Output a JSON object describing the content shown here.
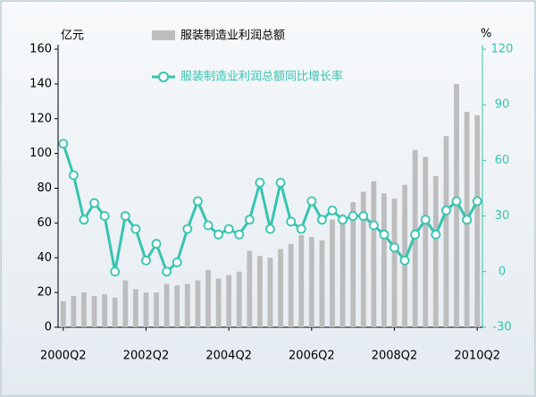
{
  "chart_data": {
    "type": "bar-line",
    "y_unit": "亿元",
    "y2_unit": "%",
    "categories": [
      "2000Q2",
      null,
      null,
      null,
      null,
      null,
      null,
      null,
      "2002Q2",
      null,
      null,
      null,
      null,
      null,
      null,
      null,
      "2004Q2",
      null,
      null,
      null,
      null,
      null,
      null,
      null,
      "2006Q2",
      null,
      null,
      null,
      null,
      null,
      null,
      null,
      "2008Q2",
      null,
      null,
      null,
      null,
      null,
      null,
      null,
      "2010Q2"
    ],
    "series": [
      {
        "name": "服装制造业利润总额",
        "type": "bar",
        "color": "#bdbdbd",
        "axis": "y",
        "values": [
          15,
          18,
          20,
          18,
          19,
          17,
          27,
          22,
          20,
          20,
          25,
          24,
          25,
          27,
          33,
          28,
          30,
          32,
          44,
          41,
          40,
          45,
          48,
          53,
          52,
          50,
          62,
          65,
          72,
          78,
          84,
          77,
          74,
          82,
          102,
          98,
          87,
          110,
          140,
          124,
          122
        ]
      },
      {
        "name": "服装制造业利润总额同比增长率",
        "type": "line",
        "color": "#36c4b0",
        "axis": "y2",
        "values": [
          69,
          52,
          28,
          37,
          30,
          0,
          30,
          23,
          6,
          15,
          0,
          5,
          23,
          38,
          25,
          20,
          23,
          20,
          28,
          48,
          23,
          48,
          27,
          23,
          38,
          28,
          33,
          28,
          30,
          30,
          25,
          20,
          13,
          6,
          20,
          28,
          20,
          33,
          38,
          28,
          38
        ]
      }
    ],
    "ylim": [
      0,
      160
    ],
    "yticks": [
      0,
      20,
      40,
      60,
      80,
      100,
      120,
      140,
      160
    ],
    "y2lim": [
      -30,
      120
    ],
    "y2ticks": [
      -30,
      0,
      30,
      60,
      90,
      120
    ]
  }
}
